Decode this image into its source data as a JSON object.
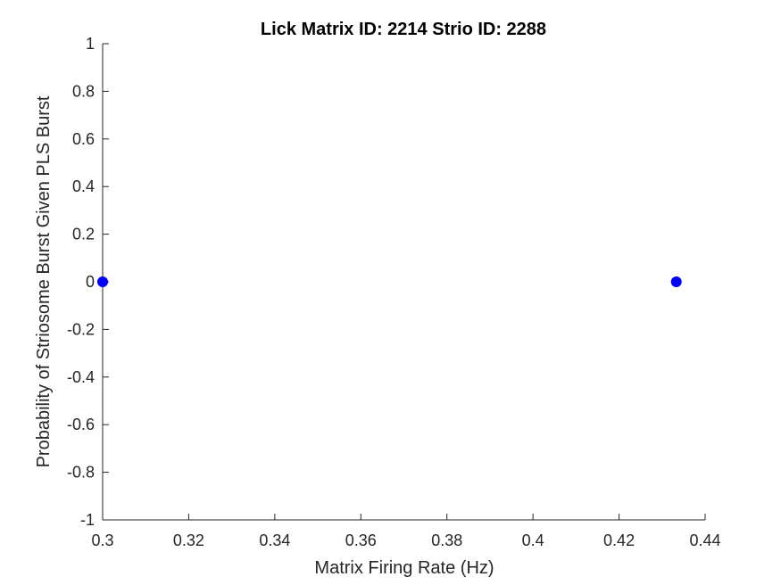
{
  "chart_data": {
    "type": "scatter",
    "title": "Lick Matrix ID: 2214 Strio ID: 2288",
    "xlabel": "Matrix Firing Rate (Hz)",
    "ylabel": "Probability of Striosome Burst Given PLS Burst",
    "xlim": [
      0.3,
      0.44
    ],
    "ylim": [
      -1,
      1
    ],
    "xticks": [
      0.3,
      0.32,
      0.34,
      0.36,
      0.38,
      0.4,
      0.42,
      0.44
    ],
    "xtick_labels": [
      "0.3",
      "0.32",
      "0.34",
      "0.36",
      "0.38",
      "0.4",
      "0.42",
      "0.44"
    ],
    "yticks": [
      -1,
      -0.8,
      -0.6,
      -0.4,
      -0.2,
      0,
      0.2,
      0.4,
      0.6,
      0.8,
      1
    ],
    "ytick_labels": [
      "-1",
      "-0.8",
      "-0.6",
      "-0.4",
      "-0.2",
      "0",
      "0.2",
      "0.4",
      "0.6",
      "0.8",
      "1"
    ],
    "grid": false,
    "series": [
      {
        "points": [
          {
            "x": 0.3,
            "y": 0
          },
          {
            "x": 0.4333,
            "y": 0
          }
        ],
        "color": "#0000ff"
      }
    ]
  }
}
